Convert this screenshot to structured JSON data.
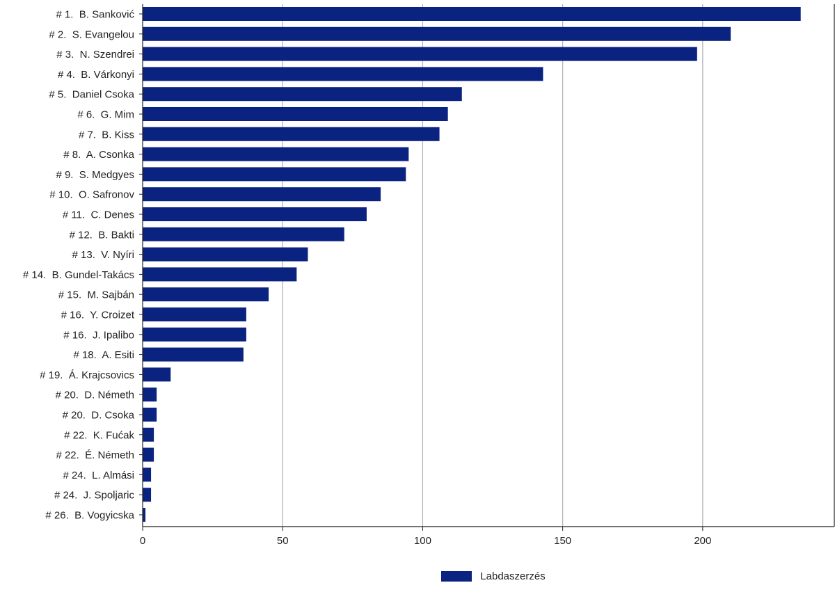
{
  "chart_data": {
    "type": "bar",
    "orientation": "horizontal",
    "categories": [
      "# 1.  B. Sanković",
      "# 2.  S. Evangelou",
      "# 3.  N. Szendrei",
      "# 4.  B. Várkonyi",
      "# 5.  Daniel Csoka",
      "# 6.  G. Mim",
      "# 7.  B. Kiss",
      "# 8.  A. Csonka",
      "# 9.  S. Medgyes",
      "# 10.  O. Safronov",
      "# 11.  C. Denes",
      "# 12.  B. Bakti",
      "# 13.  V. Nyíri",
      "# 14.  B. Gundel-Takács",
      "# 15.  M. Sajbán",
      "# 16.  Y. Croizet",
      "# 16.  J. Ipalibo",
      "# 18.  A. Esiti",
      "# 19.  Á. Krajcsovics",
      "# 20.  D. Németh",
      "# 20.  D. Csoka",
      "# 22.  K. Fućak",
      "# 22.  É. Németh",
      "# 24.  L. Almási",
      "# 24.  J. Spoljaric",
      "# 26.  B. Vogyicska"
    ],
    "series": [
      {
        "name": "Labdaszerzés",
        "color": "#0a2280",
        "values": [
          235,
          210,
          198,
          143,
          114,
          109,
          106,
          95,
          94,
          85,
          80,
          72,
          59,
          55,
          45,
          37,
          37,
          36,
          10,
          5,
          5,
          4,
          4,
          3,
          3,
          1
        ]
      }
    ],
    "xlim": [
      0,
      247
    ],
    "xticks": [
      0,
      50,
      100,
      150,
      200
    ],
    "grid": "vertical",
    "legend_position": "bottom-center"
  }
}
